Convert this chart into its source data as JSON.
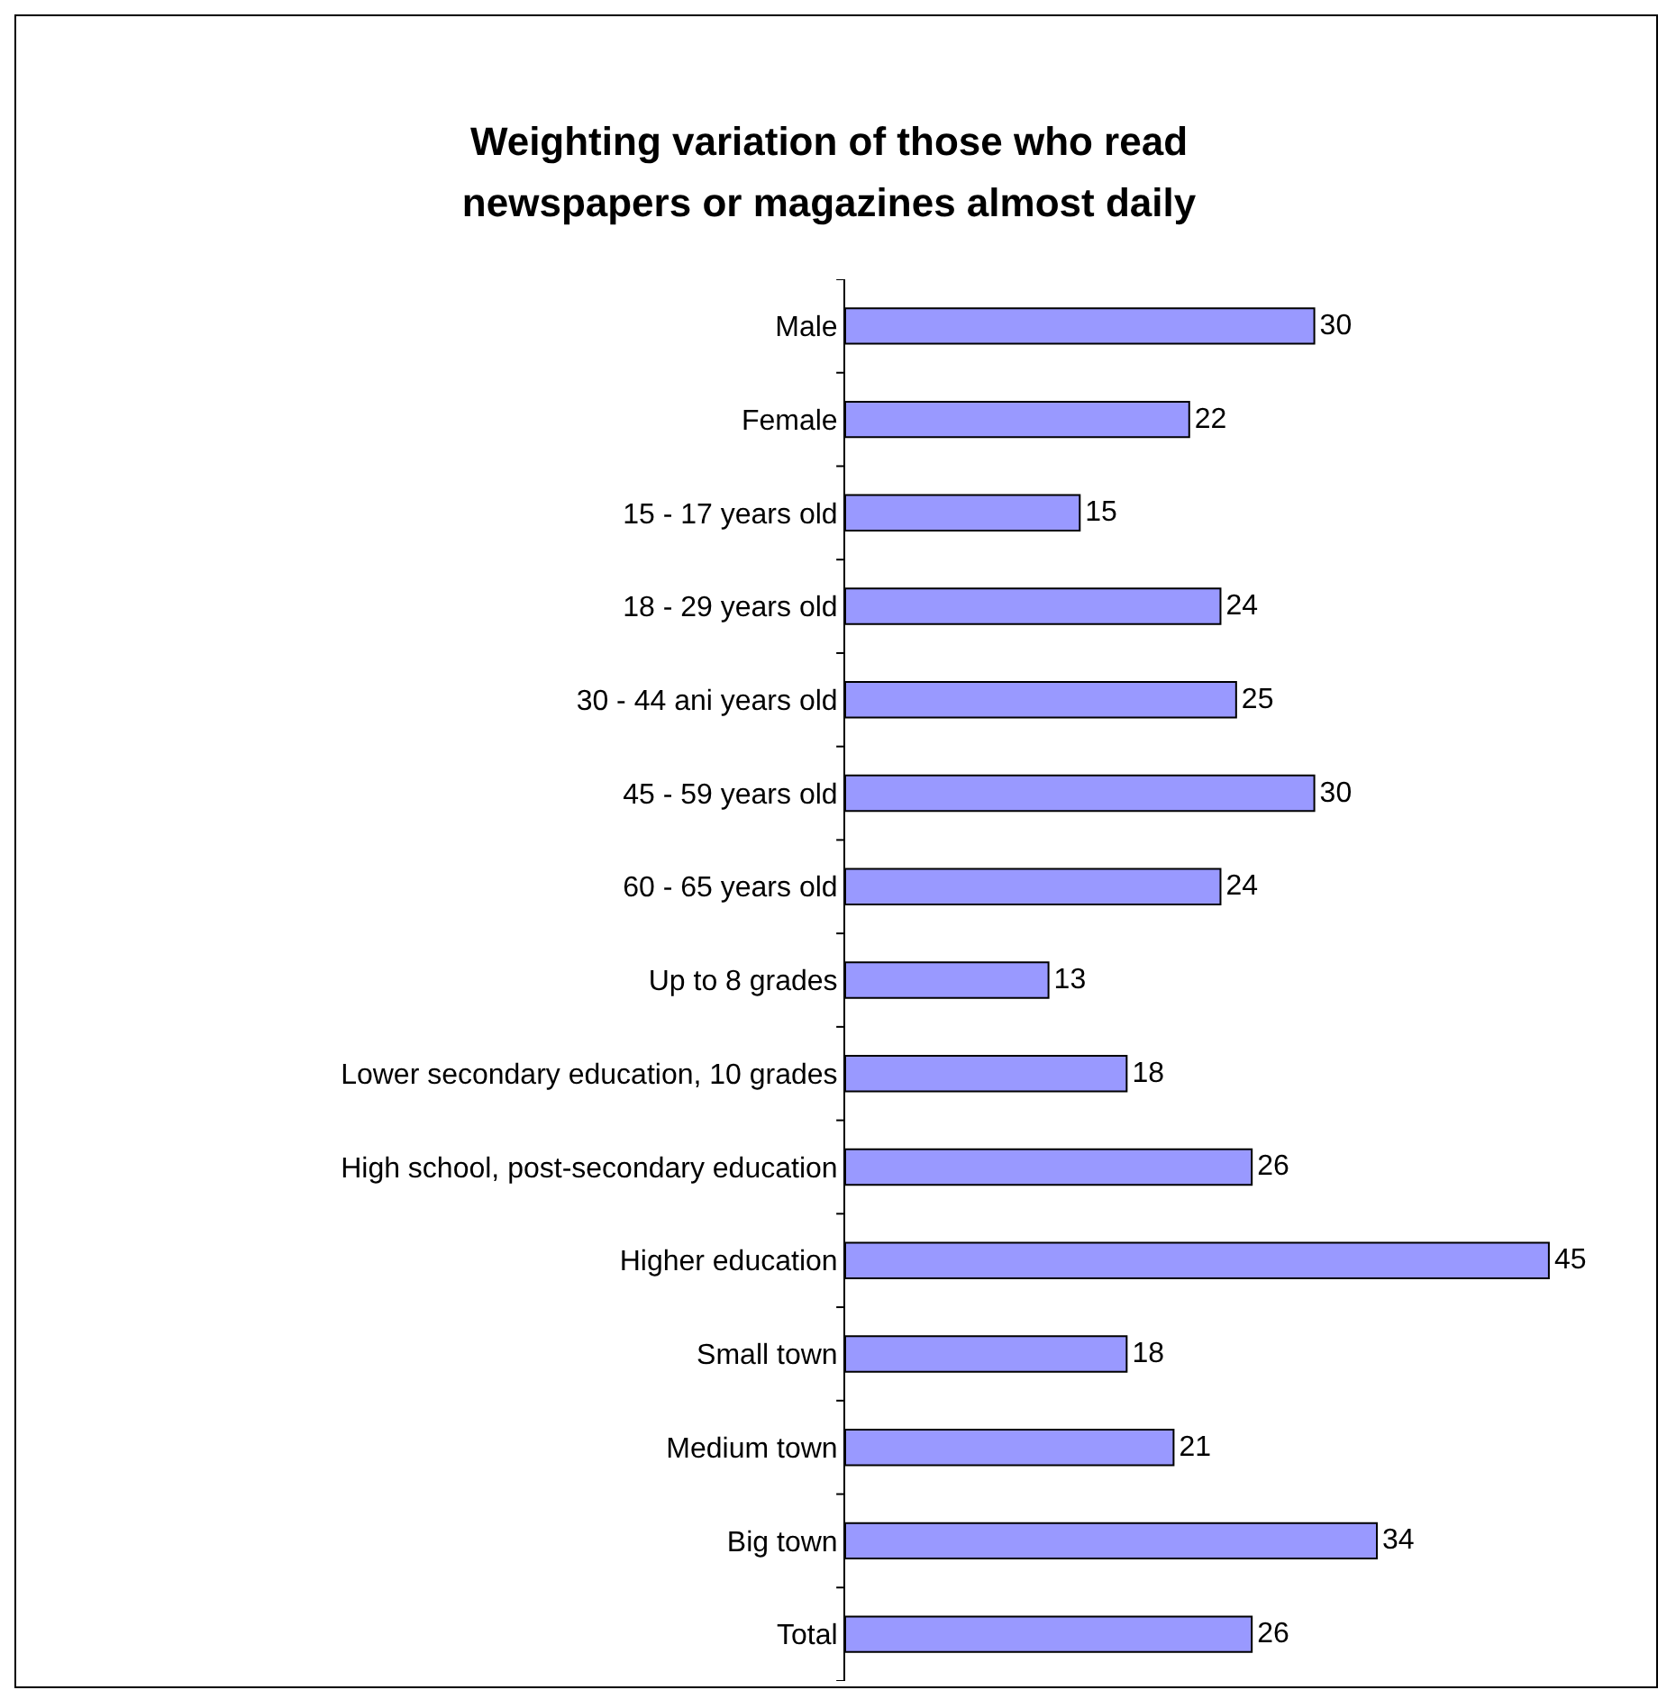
{
  "chart_data": {
    "type": "bar",
    "orientation": "horizontal",
    "title": "Weighting variation of those who read newspapers or magazines almost daily",
    "categories": [
      "Male",
      "Female",
      "15 - 17 years old",
      "18 - 29 years old",
      "30 - 44 ani years old",
      "45 - 59 years old",
      "60 - 65 years old",
      "Up to 8 grades",
      "Lower secondary education, 10 grades",
      "High school, post-secondary education",
      "Higher education",
      "Small town",
      "Medium town",
      "Big town",
      "Total"
    ],
    "values": [
      30,
      22,
      15,
      24,
      25,
      30,
      24,
      13,
      18,
      26,
      45,
      18,
      21,
      34,
      26
    ],
    "color": "#9999ff",
    "data_labels": true,
    "tick_labels": "y"
  }
}
